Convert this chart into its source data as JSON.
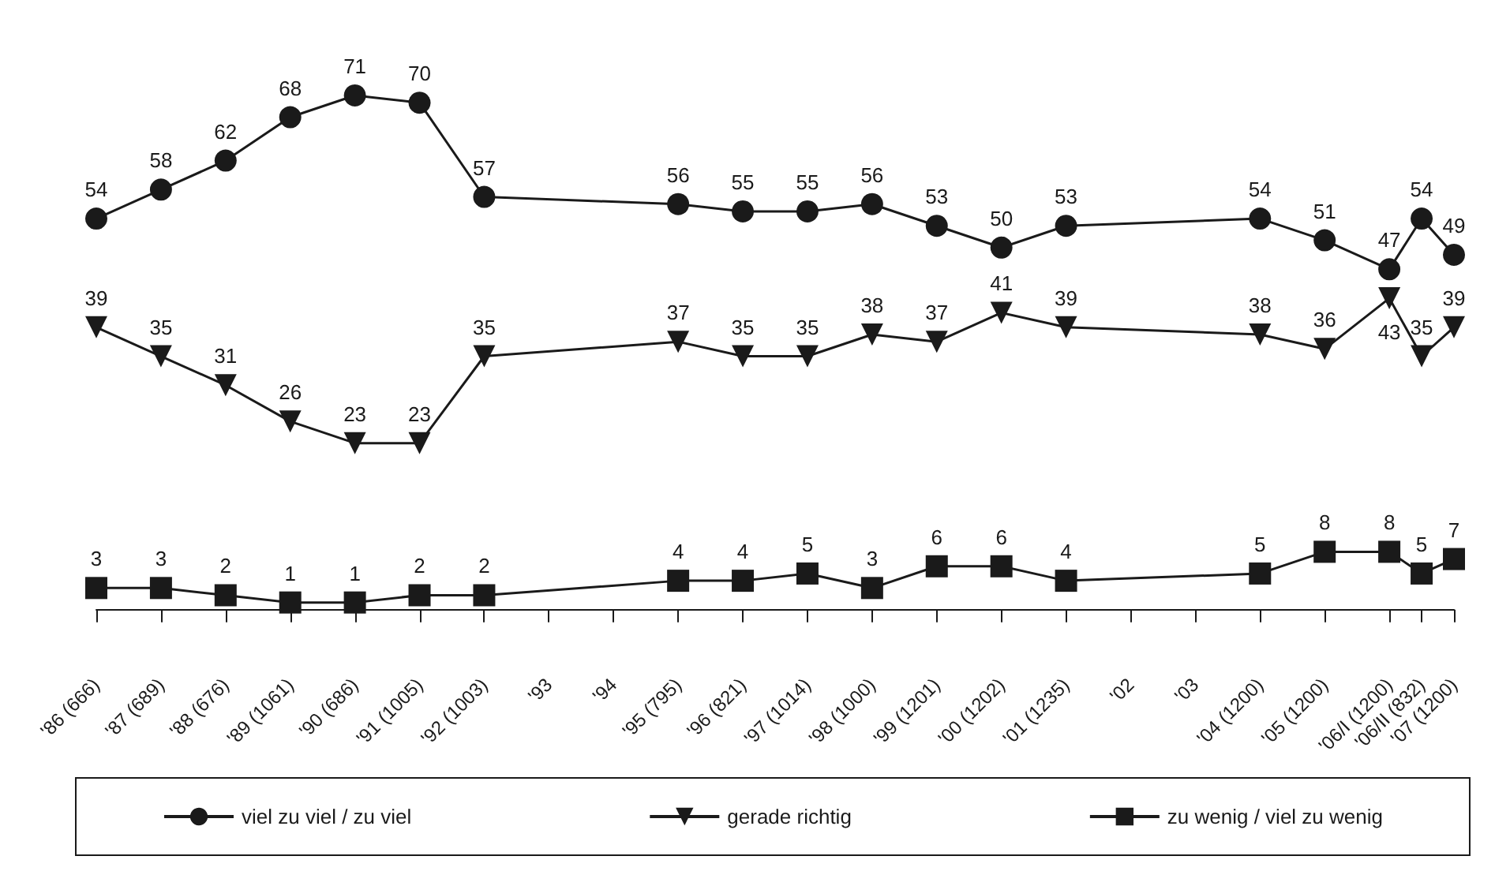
{
  "chart_data": {
    "type": "line",
    "x": [
      1986,
      1987,
      1988,
      1989,
      1990,
      1991,
      1992,
      1995,
      1996,
      1997,
      1998,
      1999,
      2000,
      2001,
      2004,
      2005,
      2006,
      2006.5,
      2007
    ],
    "xlim": [
      1986,
      2007
    ],
    "xticks": [
      {
        "value": 1986,
        "label": "'86 (666)"
      },
      {
        "value": 1987,
        "label": "'87 (689)"
      },
      {
        "value": 1988,
        "label": "'88 (676)"
      },
      {
        "value": 1989,
        "label": "'89 (1061)"
      },
      {
        "value": 1990,
        "label": "'90 (686)"
      },
      {
        "value": 1991,
        "label": "'91 (1005)"
      },
      {
        "value": 1992,
        "label": "'92 (1003)"
      },
      {
        "value": 1993,
        "label": "'93"
      },
      {
        "value": 1994,
        "label": "'94"
      },
      {
        "value": 1995,
        "label": "'95 (795)"
      },
      {
        "value": 1996,
        "label": "'96 (821)"
      },
      {
        "value": 1997,
        "label": "'97 (1014)"
      },
      {
        "value": 1998,
        "label": "'98 (1000)"
      },
      {
        "value": 1999,
        "label": "'99 (1201)"
      },
      {
        "value": 2000,
        "label": "'00 (1202)"
      },
      {
        "value": 2001,
        "label": "'01 (1235)"
      },
      {
        "value": 2002,
        "label": "'02"
      },
      {
        "value": 2003,
        "label": "'03"
      },
      {
        "value": 2004,
        "label": "'04 (1200)"
      },
      {
        "value": 2005,
        "label": "'05 (1200)"
      },
      {
        "value": 2006,
        "label": "'06/I (1200)"
      },
      {
        "value": 2006.5,
        "label": "'06/II (832)"
      },
      {
        "value": 2007,
        "label": "'07 (1200)"
      }
    ],
    "series": [
      {
        "name": "viel zu viel / zu viel",
        "color": "#1a1a1a",
        "marker": "circle",
        "values": [
          54,
          58,
          62,
          68,
          71,
          70,
          57,
          56,
          55,
          55,
          56,
          53,
          50,
          53,
          54,
          51,
          47,
          54,
          49
        ]
      },
      {
        "name": "gerade richtig",
        "color": "#1a1a1a",
        "marker": "triangle",
        "values": [
          39,
          35,
          31,
          26,
          23,
          23,
          35,
          37,
          35,
          35,
          38,
          37,
          41,
          39,
          38,
          36,
          43,
          35,
          39
        ]
      },
      {
        "name": "zu wenig / viel zu wenig",
        "color": "#1a1a1a",
        "marker": "square",
        "values": [
          3,
          3,
          2,
          1,
          1,
          2,
          2,
          4,
          4,
          5,
          3,
          6,
          6,
          4,
          5,
          8,
          8,
          5,
          7
        ]
      }
    ],
    "data_labels": true,
    "grid": false,
    "legend": "bottom",
    "tick_labels": "x",
    "line_style": "solid"
  }
}
